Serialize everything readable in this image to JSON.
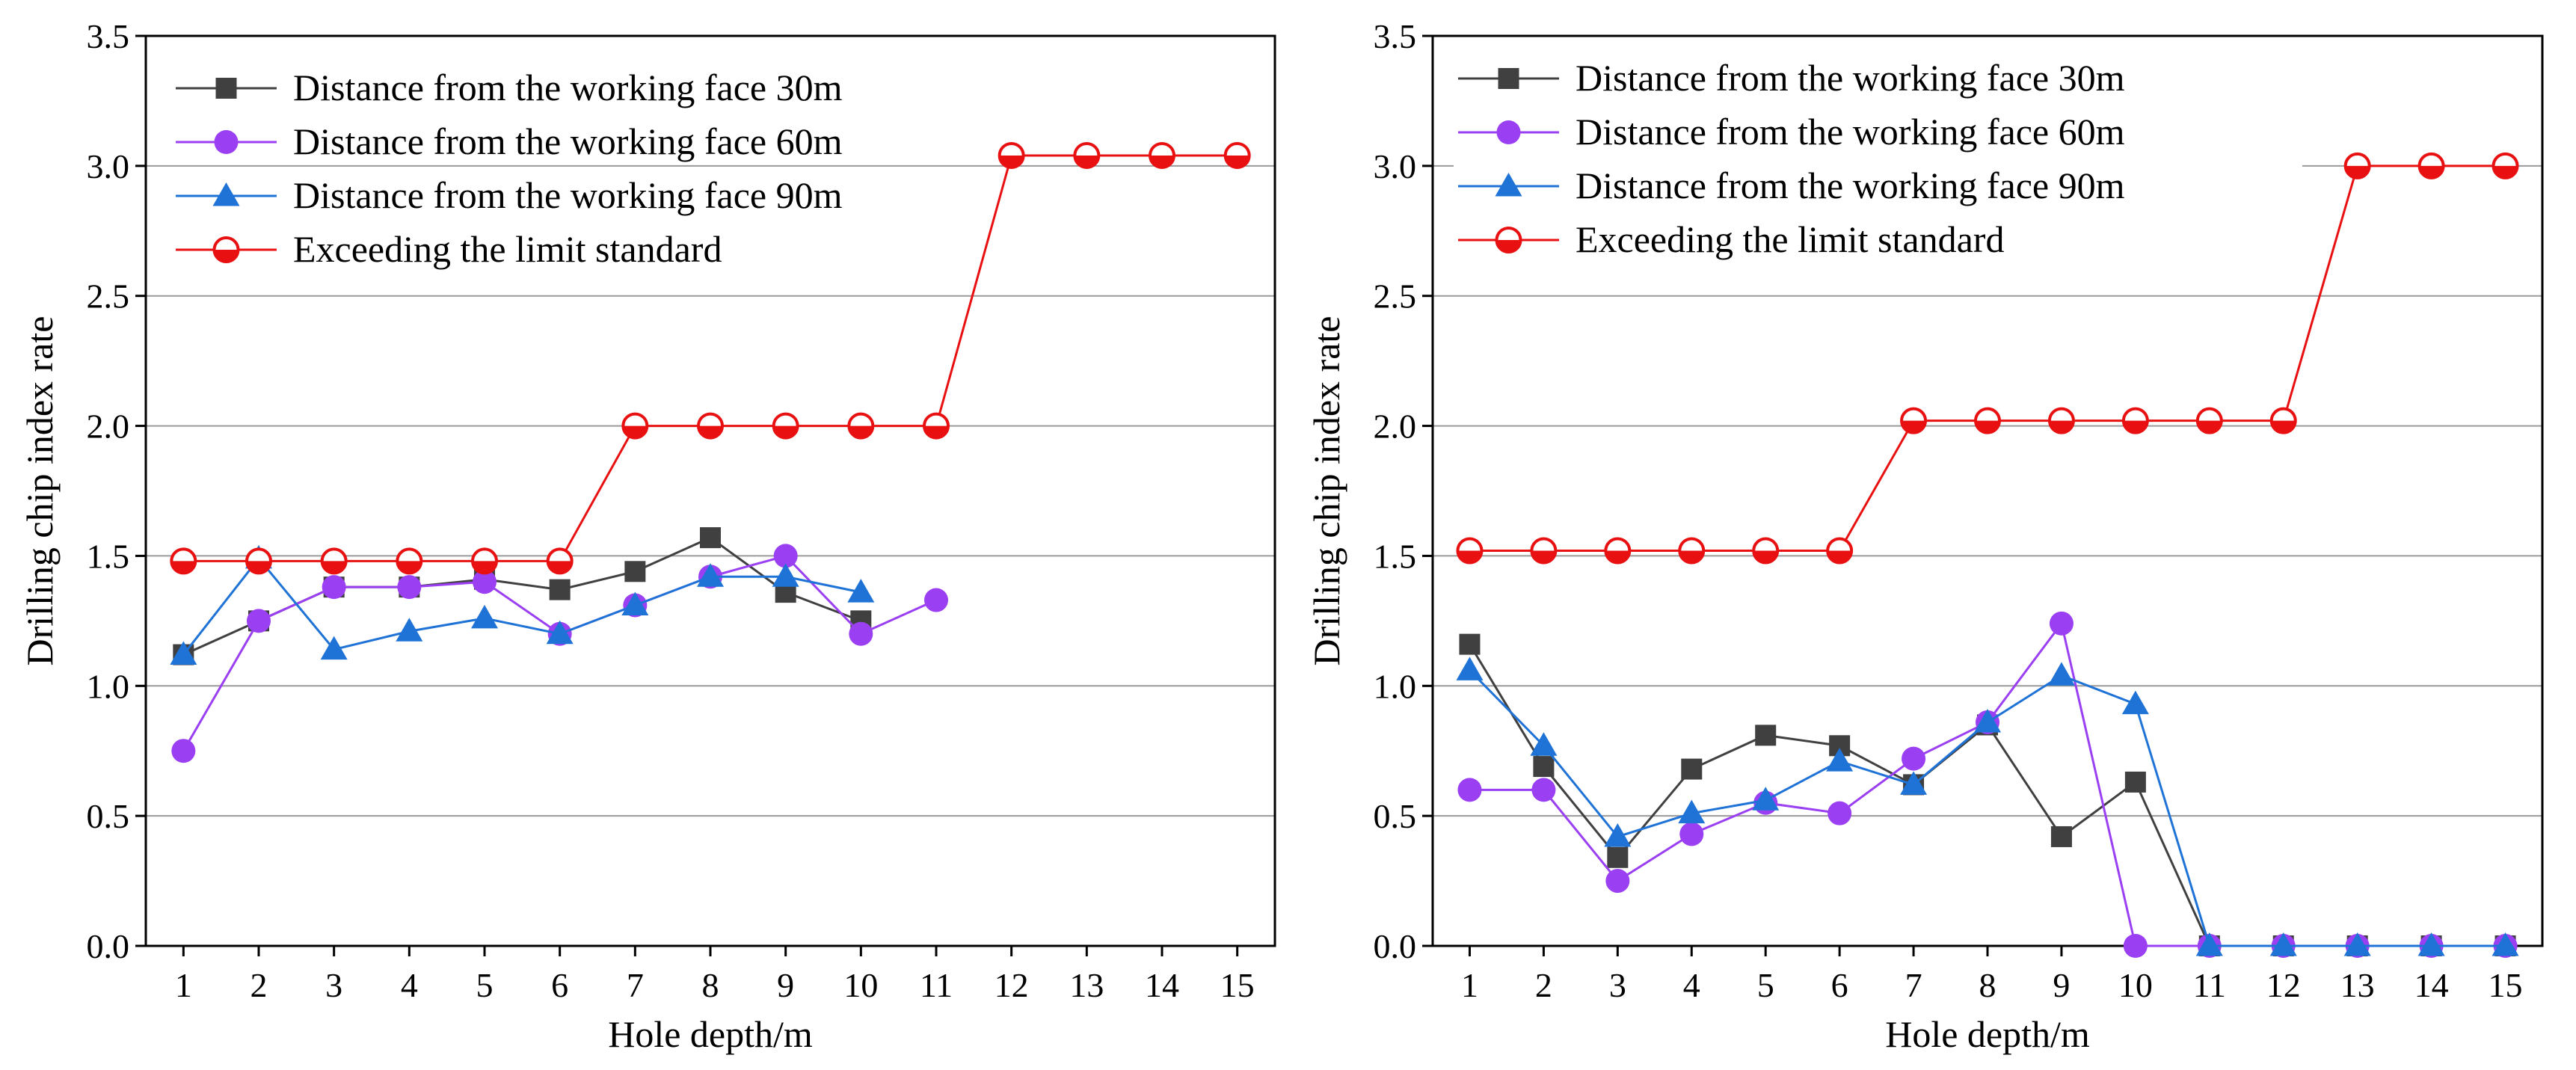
{
  "chart_data": [
    {
      "type": "line",
      "title": "",
      "xlabel": "Hole depth/m",
      "ylabel": "Drilling chip index rate",
      "xlim": [
        0.5,
        15.5
      ],
      "ylim": [
        0,
        3.5
      ],
      "x_ticks": [
        "1",
        "2",
        "3",
        "4",
        "5",
        "6",
        "7",
        "8",
        "9",
        "10",
        "11",
        "12",
        "13",
        "14",
        "15"
      ],
      "y_ticks": [
        "0.0",
        "0.5",
        "1.0",
        "1.5",
        "2.0",
        "2.5",
        "3.0",
        "3.5"
      ],
      "grid": "horizontal",
      "legend_position": "top-left",
      "series": [
        {
          "name": "Distance from the working face 30m",
          "color": "#404040",
          "marker": "square",
          "x": [
            1,
            2,
            3,
            4,
            5,
            6,
            7,
            8,
            9,
            10
          ],
          "y": [
            1.12,
            1.25,
            1.38,
            1.38,
            1.41,
            1.37,
            1.44,
            1.57,
            1.36,
            1.25
          ]
        },
        {
          "name": "Distance from the working face 60m",
          "color": "#9b3ff2",
          "marker": "circle",
          "x": [
            1,
            2,
            3,
            4,
            5,
            6,
            7,
            8,
            9,
            10,
            11
          ],
          "y": [
            0.75,
            1.25,
            1.38,
            1.38,
            1.4,
            1.2,
            1.31,
            1.42,
            1.5,
            1.2,
            1.33
          ]
        },
        {
          "name": "Distance from the working face 90m",
          "color": "#1f73d6",
          "marker": "triangle",
          "x": [
            1,
            2,
            3,
            4,
            5,
            6,
            7,
            8,
            9,
            10
          ],
          "y": [
            1.12,
            1.49,
            1.14,
            1.21,
            1.26,
            1.2,
            1.31,
            1.42,
            1.42,
            1.36
          ]
        },
        {
          "name": "Exceeding the limit standard",
          "color": "#e81010",
          "marker": "half-circle",
          "x": [
            1,
            2,
            3,
            4,
            5,
            6,
            7,
            8,
            9,
            10,
            11,
            12,
            13,
            14,
            15
          ],
          "y": [
            1.48,
            1.48,
            1.48,
            1.48,
            1.48,
            1.48,
            2.0,
            2.0,
            2.0,
            2.0,
            2.0,
            3.04,
            3.04,
            3.04,
            3.04
          ]
        }
      ]
    },
    {
      "type": "line",
      "title": "",
      "xlabel": "Hole depth/m",
      "ylabel": "Drilling chip index rate",
      "xlim": [
        0.5,
        15.5
      ],
      "ylim": [
        0,
        3.5
      ],
      "x_ticks": [
        "1",
        "2",
        "3",
        "4",
        "5",
        "6",
        "7",
        "8",
        "9",
        "10",
        "11",
        "12",
        "13",
        "14",
        "15"
      ],
      "y_ticks": [
        "0.0",
        "0.5",
        "1.0",
        "1.5",
        "2.0",
        "2.5",
        "3.0",
        "3.5"
      ],
      "grid": "horizontal",
      "legend_position": "top-left",
      "series": [
        {
          "name": "Distance from the working face 30m",
          "color": "#404040",
          "marker": "square",
          "x": [
            1,
            2,
            3,
            4,
            5,
            6,
            7,
            8,
            9,
            10,
            11,
            12,
            13,
            14,
            15
          ],
          "y": [
            1.16,
            0.69,
            0.34,
            0.68,
            0.81,
            0.77,
            0.62,
            0.85,
            0.42,
            0.63,
            0,
            0,
            0,
            0,
            0
          ]
        },
        {
          "name": "Distance from the working face 60m",
          "color": "#9b3ff2",
          "marker": "circle",
          "x": [
            1,
            2,
            3,
            4,
            5,
            6,
            7,
            8,
            9,
            10,
            11,
            12,
            13,
            14,
            15
          ],
          "y": [
            0.6,
            0.6,
            0.25,
            0.43,
            0.55,
            0.51,
            0.72,
            0.86,
            1.24,
            0,
            0,
            0,
            0,
            0,
            0
          ]
        },
        {
          "name": "Distance from the working face 90m",
          "color": "#1f73d6",
          "marker": "triangle",
          "x": [
            1,
            2,
            3,
            4,
            5,
            6,
            7,
            8,
            9,
            10,
            11,
            12,
            13,
            14,
            15
          ],
          "y": [
            1.06,
            0.77,
            0.42,
            0.51,
            0.56,
            0.71,
            0.62,
            0.86,
            1.04,
            0.93,
            0,
            0,
            0,
            0,
            0
          ]
        },
        {
          "name": "Exceeding the limit standard",
          "color": "#e81010",
          "marker": "half-circle",
          "x": [
            1,
            2,
            3,
            4,
            5,
            6,
            7,
            8,
            9,
            10,
            11,
            12,
            13,
            14,
            15
          ],
          "y": [
            1.52,
            1.52,
            1.52,
            1.52,
            1.52,
            1.52,
            2.02,
            2.02,
            2.02,
            2.02,
            2.02,
            2.02,
            3.0,
            3.0,
            3.0
          ]
        }
      ]
    }
  ]
}
